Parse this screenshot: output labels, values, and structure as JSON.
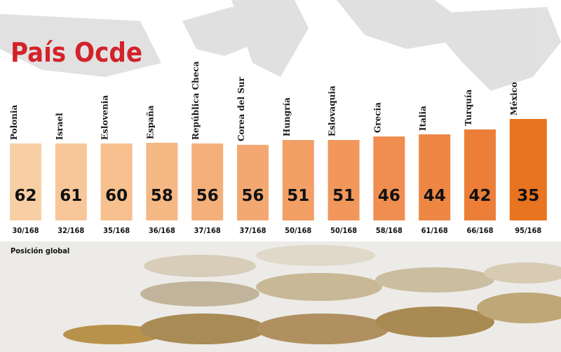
{
  "chart_data": {
    "type": "bar",
    "title": "País Ocde",
    "categories": [
      "Polonia",
      "Israel",
      "Eslovenia",
      "España",
      "República Checa",
      "Corea del Sur",
      "Hungría",
      "Eslovaquia",
      "Grecia",
      "Italia",
      "Turquía",
      "México"
    ],
    "values": [
      62,
      61,
      60,
      58,
      56,
      56,
      51,
      51,
      46,
      44,
      42,
      35
    ],
    "ranks": [
      "30/168",
      "32/168",
      "35/168",
      "36/168",
      "37/168",
      "37/168",
      "50/168",
      "50/168",
      "58/168",
      "61/168",
      "66/168",
      "95/168"
    ],
    "rank_label": "Posición global",
    "colors": [
      "#f8cfa4",
      "#f7c79a",
      "#f6c08f",
      "#f5b885",
      "#f4b07b",
      "#f3a871",
      "#f29f66",
      "#f1975b",
      "#ef8e4f",
      "#ee8644",
      "#ec7e38",
      "#e8741f"
    ]
  }
}
